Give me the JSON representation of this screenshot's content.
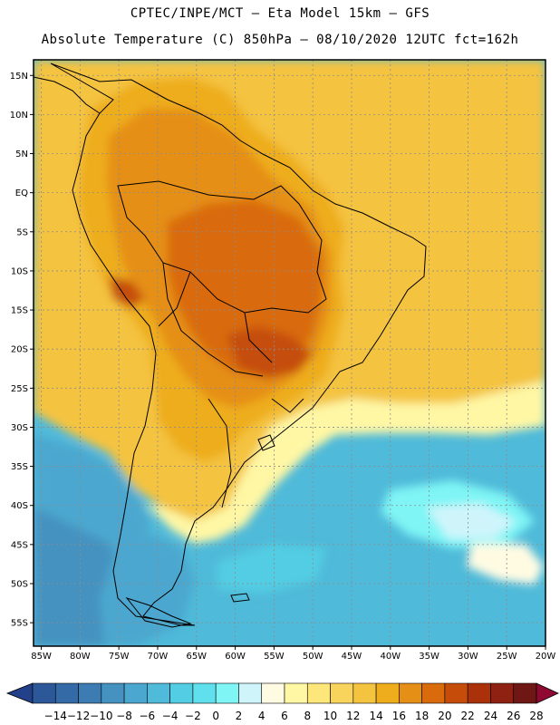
{
  "header": {
    "line1": "CPTEC/INPE/MCT –  Eta Model 15km – GFS",
    "line2": "Absolute Temperature (C) 850hPa – 08/10/2020 12UTC fct=162h"
  },
  "map": {
    "lon_range": [
      -86,
      -20
    ],
    "lat_range": [
      -58,
      17
    ],
    "lat_ticks": [
      "15N",
      "10N",
      "5N",
      "EQ",
      "5S",
      "10S",
      "15S",
      "20S",
      "25S",
      "30S",
      "35S",
      "40S",
      "45S",
      "50S",
      "55S"
    ],
    "lon_ticks": [
      "85W",
      "80W",
      "75W",
      "70W",
      "65W",
      "60W",
      "55W",
      "50W",
      "45W",
      "40W",
      "35W",
      "30W",
      "25W",
      "20W"
    ],
    "grid": "dashed"
  },
  "colorbar": {
    "labels": [
      "-14",
      "-12",
      "-10",
      "-8",
      "-6",
      "-4",
      "-2",
      "0",
      "2",
      "4",
      "6",
      "8",
      "10",
      "12",
      "14",
      "16",
      "18",
      "20",
      "22",
      "24",
      "26",
      "28"
    ],
    "colors": [
      "#22418a",
      "#2c5799",
      "#346aa6",
      "#3c7cb3",
      "#4592c0",
      "#4ba7cf",
      "#4fbad9",
      "#52cde3",
      "#5fe0ec",
      "#7ff5f5",
      "#cff5fb",
      "#fffbe3",
      "#fff7a4",
      "#fde67a",
      "#f9d45c",
      "#f4c33f",
      "#eead1c",
      "#e58f17",
      "#d96b0d",
      "#c54d09",
      "#ab310a",
      "#8e2112",
      "#6f1715",
      "#8f0a33"
    ]
  }
}
